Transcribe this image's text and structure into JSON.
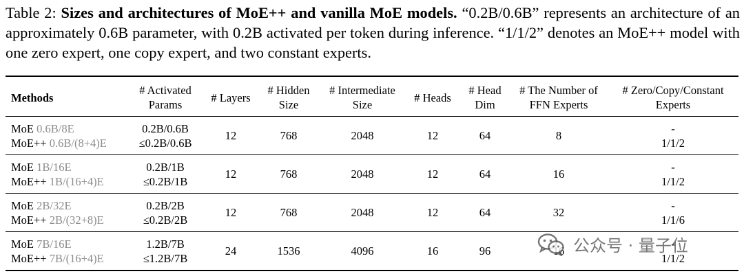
{
  "caption": {
    "label": "Table 2: ",
    "bold": "Sizes and architectures of MoE++ and vanilla MoE models.",
    "rest": " “0.2B/0.6B” represents an architecture of an approximately 0.6B parameter, with 0.2B activated per token during inference. “1/1/2” denotes an MoE++ model with one zero expert, one copy expert, and two constant experts."
  },
  "table": {
    "headers": {
      "methods": "Methods",
      "activated_1": "# Activated",
      "activated_2": "Params",
      "layers": "# Layers",
      "hidden_1": "# Hidden",
      "hidden_2": "Size",
      "intermediate_1": "# Intermediate",
      "intermediate_2": "Size",
      "heads": "# Heads",
      "headdim_1": "# Head",
      "headdim_2": "Dim",
      "ffn_1": "# The Number of",
      "ffn_2": "FFN Experts",
      "zcc_1": "# Zero/Copy/Constant",
      "zcc_2": "Experts"
    },
    "rows": [
      {
        "moe_name": "MoE",
        "moe_suffix": "0.6B/8E",
        "pp_name": "MoE++",
        "pp_suffix": "0.6B/(8+4)E",
        "params_moe": "0.2B/0.6B",
        "params_pp": "≤0.2B/0.6B",
        "layers": "12",
        "hidden": "768",
        "intermediate": "2048",
        "heads": "12",
        "head_dim": "64",
        "ffn_experts": "8",
        "zcc_moe": "-",
        "zcc_pp": "1/1/2"
      },
      {
        "moe_name": "MoE",
        "moe_suffix": "1B/16E",
        "pp_name": "MoE++",
        "pp_suffix": "1B/(16+4)E",
        "params_moe": "0.2B/1B",
        "params_pp": "≤0.2B/1B",
        "layers": "12",
        "hidden": "768",
        "intermediate": "2048",
        "heads": "12",
        "head_dim": "64",
        "ffn_experts": "16",
        "zcc_moe": "-",
        "zcc_pp": "1/1/2"
      },
      {
        "moe_name": "MoE",
        "moe_suffix": "2B/32E",
        "pp_name": "MoE++",
        "pp_suffix": "2B/(32+8)E",
        "params_moe": "0.2B/2B",
        "params_pp": "≤0.2B/2B",
        "layers": "12",
        "hidden": "768",
        "intermediate": "2048",
        "heads": "12",
        "head_dim": "64",
        "ffn_experts": "32",
        "zcc_moe": "-",
        "zcc_pp": "1/1/6"
      },
      {
        "moe_name": "MoE",
        "moe_suffix": "7B/16E",
        "pp_name": "MoE++",
        "pp_suffix": "7B/(16+4)E",
        "params_moe": "1.2B/7B",
        "params_pp": "≤1.2B/7B",
        "layers": "24",
        "hidden": "1536",
        "intermediate": "4096",
        "heads": "16",
        "head_dim": "96",
        "ffn_experts": "16",
        "zcc_moe": "-",
        "zcc_pp": "1/1/2"
      }
    ]
  },
  "watermark": {
    "text": "公众号 · 量子位",
    "icon": "wechat-icon",
    "color": "#505050"
  }
}
